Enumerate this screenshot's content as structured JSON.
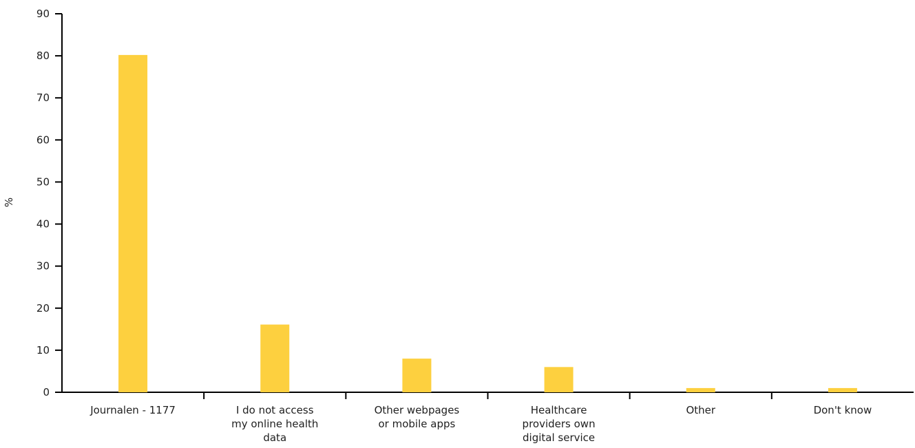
{
  "chart_data": {
    "type": "bar",
    "categories": [
      [
        "Journalen - 1177"
      ],
      [
        "I do not access",
        "my online health",
        "data"
      ],
      [
        "Other webpages",
        "or mobile apps"
      ],
      [
        "Healthcare",
        "providers own",
        "digital service"
      ],
      [
        "Other"
      ],
      [
        "Don't know"
      ]
    ],
    "values": [
      80.2,
      16.1,
      8.0,
      6.0,
      1.0,
      1.0
    ],
    "ylabel": "%",
    "ylim": [
      0,
      90
    ],
    "yticks": [
      0,
      10,
      20,
      30,
      40,
      50,
      60,
      70,
      80,
      90
    ],
    "bar_color": "#FDD03F",
    "axis_color": "#000000",
    "grid": false
  }
}
